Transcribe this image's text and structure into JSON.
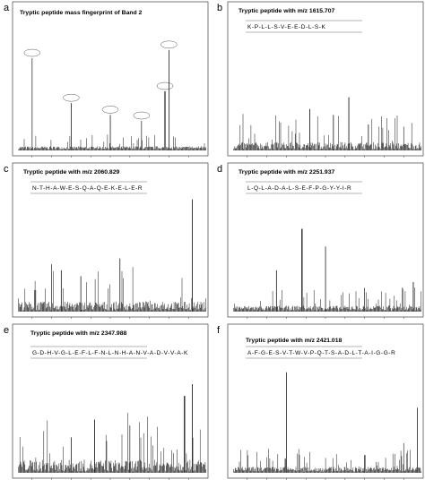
{
  "panels": [
    {
      "letter": "a",
      "title": "Tryptic peptide mass fingerprint of Band 2"
    },
    {
      "letter": "b",
      "title": "Tryptic peptide with m/z 1615.707",
      "sequence": "K-P-L-L-S-V-E-E-D-L-S-K"
    },
    {
      "letter": "c",
      "title": "Tryptic peptide with m/z 2060.829",
      "sequence": "N-T-H-A-W-E-S-Q-A-Q-E-K-E-L-E-R"
    },
    {
      "letter": "d",
      "title": "Tryptic peptide with m/z 2251.937",
      "sequence": "L-Q-L-A-D-A-L-S-E-F-P-G-Y-Y-I-R"
    },
    {
      "letter": "e",
      "title": "Tryptic peptide with m/z 2347.988",
      "sequence": "G-D-H-V-G-L-E-F-L-F-N-L-N-H-A-N-V-A-D-V-V-A-K"
    },
    {
      "letter": "f",
      "title": "Tryptic peptide with m/z 2421.018",
      "sequence": "A-F-G-E-S-V-T-W-V-P-Q-T-S-A-D-L-T-A-I-G-G-R"
    }
  ]
}
